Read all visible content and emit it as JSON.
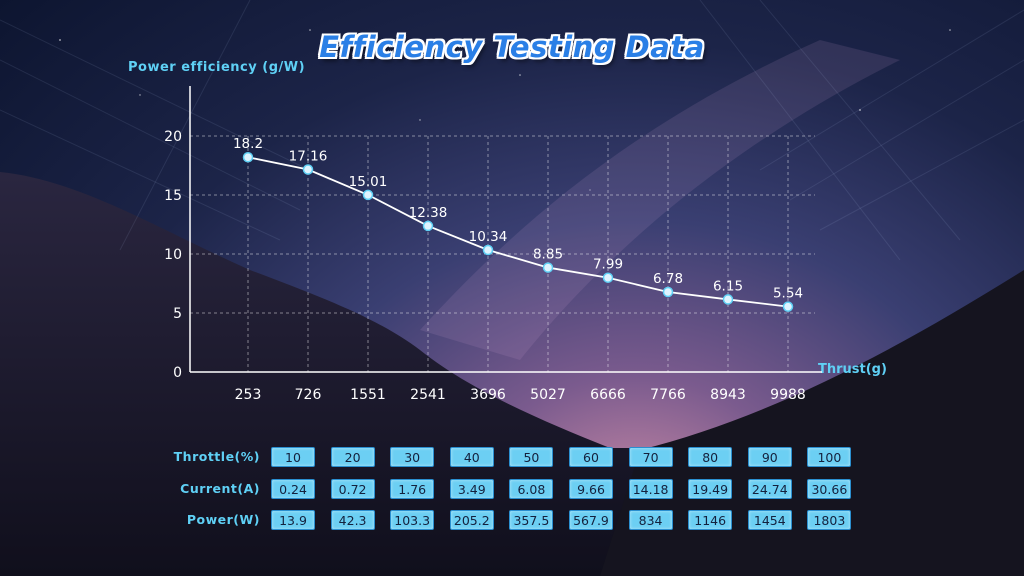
{
  "title": "Efficiency Testing Data",
  "chart_data": {
    "type": "line",
    "title": "Efficiency Testing Data",
    "ylabel": "Power efficiency (g/W)",
    "xlabel": "Thrust(g)",
    "categories": [
      "253",
      "726",
      "1551",
      "2541",
      "3696",
      "5027",
      "6666",
      "7766",
      "8943",
      "9988"
    ],
    "series": [
      {
        "values": [
          18.2,
          17.16,
          15.01,
          12.38,
          10.34,
          8.85,
          7.99,
          6.78,
          6.15,
          5.54
        ]
      }
    ],
    "ylim": [
      0,
      20
    ],
    "yticks": [
      "0",
      "5",
      "10",
      "15",
      "20"
    ],
    "grid": true,
    "line_color": "#ffffff"
  },
  "table": {
    "rows": [
      {
        "label": "Throttle(%)",
        "values": [
          "10",
          "20",
          "30",
          "40",
          "50",
          "60",
          "70",
          "80",
          "90",
          "100"
        ]
      },
      {
        "label": "Current(A)",
        "values": [
          "0.24",
          "0.72",
          "1.76",
          "3.49",
          "6.08",
          "9.66",
          "14.18",
          "19.49",
          "24.74",
          "30.66"
        ]
      },
      {
        "label": "Power(W)",
        "values": [
          "13.9",
          "42.3",
          "103.3",
          "205.2",
          "357.5",
          "567.9",
          "834",
          "1146",
          "1454",
          "1803"
        ]
      }
    ]
  }
}
